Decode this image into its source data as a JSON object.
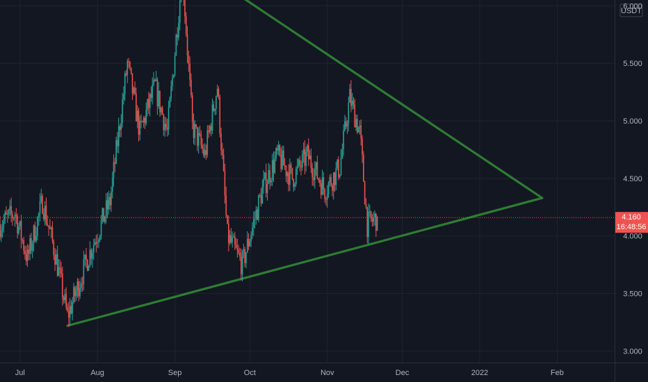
{
  "colors": {
    "background": "#131722",
    "grid": "#1f2431",
    "up": "#26a69a",
    "down": "#ef5350",
    "trendline": "#2e7d32",
    "axis_text": "#b2b5be",
    "price_line": "#ef5350",
    "badge_bg": "#ef5350"
  },
  "chart_data": {
    "type": "candlestick",
    "title": "",
    "currency_label": "USDT",
    "x_axis": {
      "range": [
        "2021-06-23",
        "2022-02-24"
      ],
      "tick_labels": [
        {
          "date": "2021-07-01",
          "label": "Jul"
        },
        {
          "date": "2021-08-01",
          "label": "Aug"
        },
        {
          "date": "2021-09-01",
          "label": "Sep"
        },
        {
          "date": "2021-10-01",
          "label": "Oct"
        },
        {
          "date": "2021-11-01",
          "label": "Nov"
        },
        {
          "date": "2021-12-01",
          "label": "Dec"
        },
        {
          "date": "2022-01-01",
          "label": "2022"
        },
        {
          "date": "2022-02-01",
          "label": "Feb"
        }
      ]
    },
    "y_axis": {
      "range": [
        2.9,
        6.05
      ],
      "ticks": [
        {
          "value": 3.0,
          "label": "3.000"
        },
        {
          "value": 3.5,
          "label": "3.500"
        },
        {
          "value": 4.0,
          "label": "4.000"
        },
        {
          "value": 4.5,
          "label": "4.500"
        },
        {
          "value": 5.0,
          "label": "5.000"
        },
        {
          "value": 5.5,
          "label": "5.500"
        },
        {
          "value": 6.0,
          "label": "6.000"
        }
      ]
    },
    "grid": true,
    "last_price": {
      "value": 4.16,
      "label": "4.160",
      "countdown": "16:48:56"
    },
    "trendlines": [
      {
        "name": "",
        "points": [
          {
            "x": "2021-09-04",
            "y": 6.42
          },
          {
            "x": "2022-01-26",
            "y": 4.33
          }
        ]
      },
      {
        "name": "",
        "points": [
          {
            "x": "2021-07-20",
            "y": 3.22
          },
          {
            "x": "2022-01-26",
            "y": 4.33
          }
        ]
      }
    ],
    "anchors": [
      {
        "x": "2021-06-23",
        "y": 4.1
      },
      {
        "x": "2021-06-29",
        "y": 4.2
      },
      {
        "x": "2021-07-04",
        "y": 3.8
      },
      {
        "x": "2021-07-10",
        "y": 4.3
      },
      {
        "x": "2021-07-15",
        "y": 3.85
      },
      {
        "x": "2021-07-20",
        "y": 3.3
      },
      {
        "x": "2021-07-28",
        "y": 3.8
      },
      {
        "x": "2021-08-06",
        "y": 4.3
      },
      {
        "x": "2021-08-13",
        "y": 5.5
      },
      {
        "x": "2021-08-18",
        "y": 4.9
      },
      {
        "x": "2021-08-24",
        "y": 5.3
      },
      {
        "x": "2021-08-29",
        "y": 4.9
      },
      {
        "x": "2021-09-04",
        "y": 6.3
      },
      {
        "x": "2021-09-08",
        "y": 4.95
      },
      {
        "x": "2021-09-13",
        "y": 4.7
      },
      {
        "x": "2021-09-18",
        "y": 5.3
      },
      {
        "x": "2021-09-22",
        "y": 4.0
      },
      {
        "x": "2021-09-28",
        "y": 3.75
      },
      {
        "x": "2021-10-06",
        "y": 4.4
      },
      {
        "x": "2021-10-12",
        "y": 4.7
      },
      {
        "x": "2021-10-18",
        "y": 4.5
      },
      {
        "x": "2021-10-24",
        "y": 4.7
      },
      {
        "x": "2021-10-31",
        "y": 4.4
      },
      {
        "x": "2021-11-06",
        "y": 4.6
      },
      {
        "x": "2021-11-10",
        "y": 5.2
      },
      {
        "x": "2021-11-14",
        "y": 4.9
      },
      {
        "x": "2021-11-17",
        "y": 4.1
      },
      {
        "x": "2021-11-21",
        "y": 4.16
      }
    ]
  }
}
